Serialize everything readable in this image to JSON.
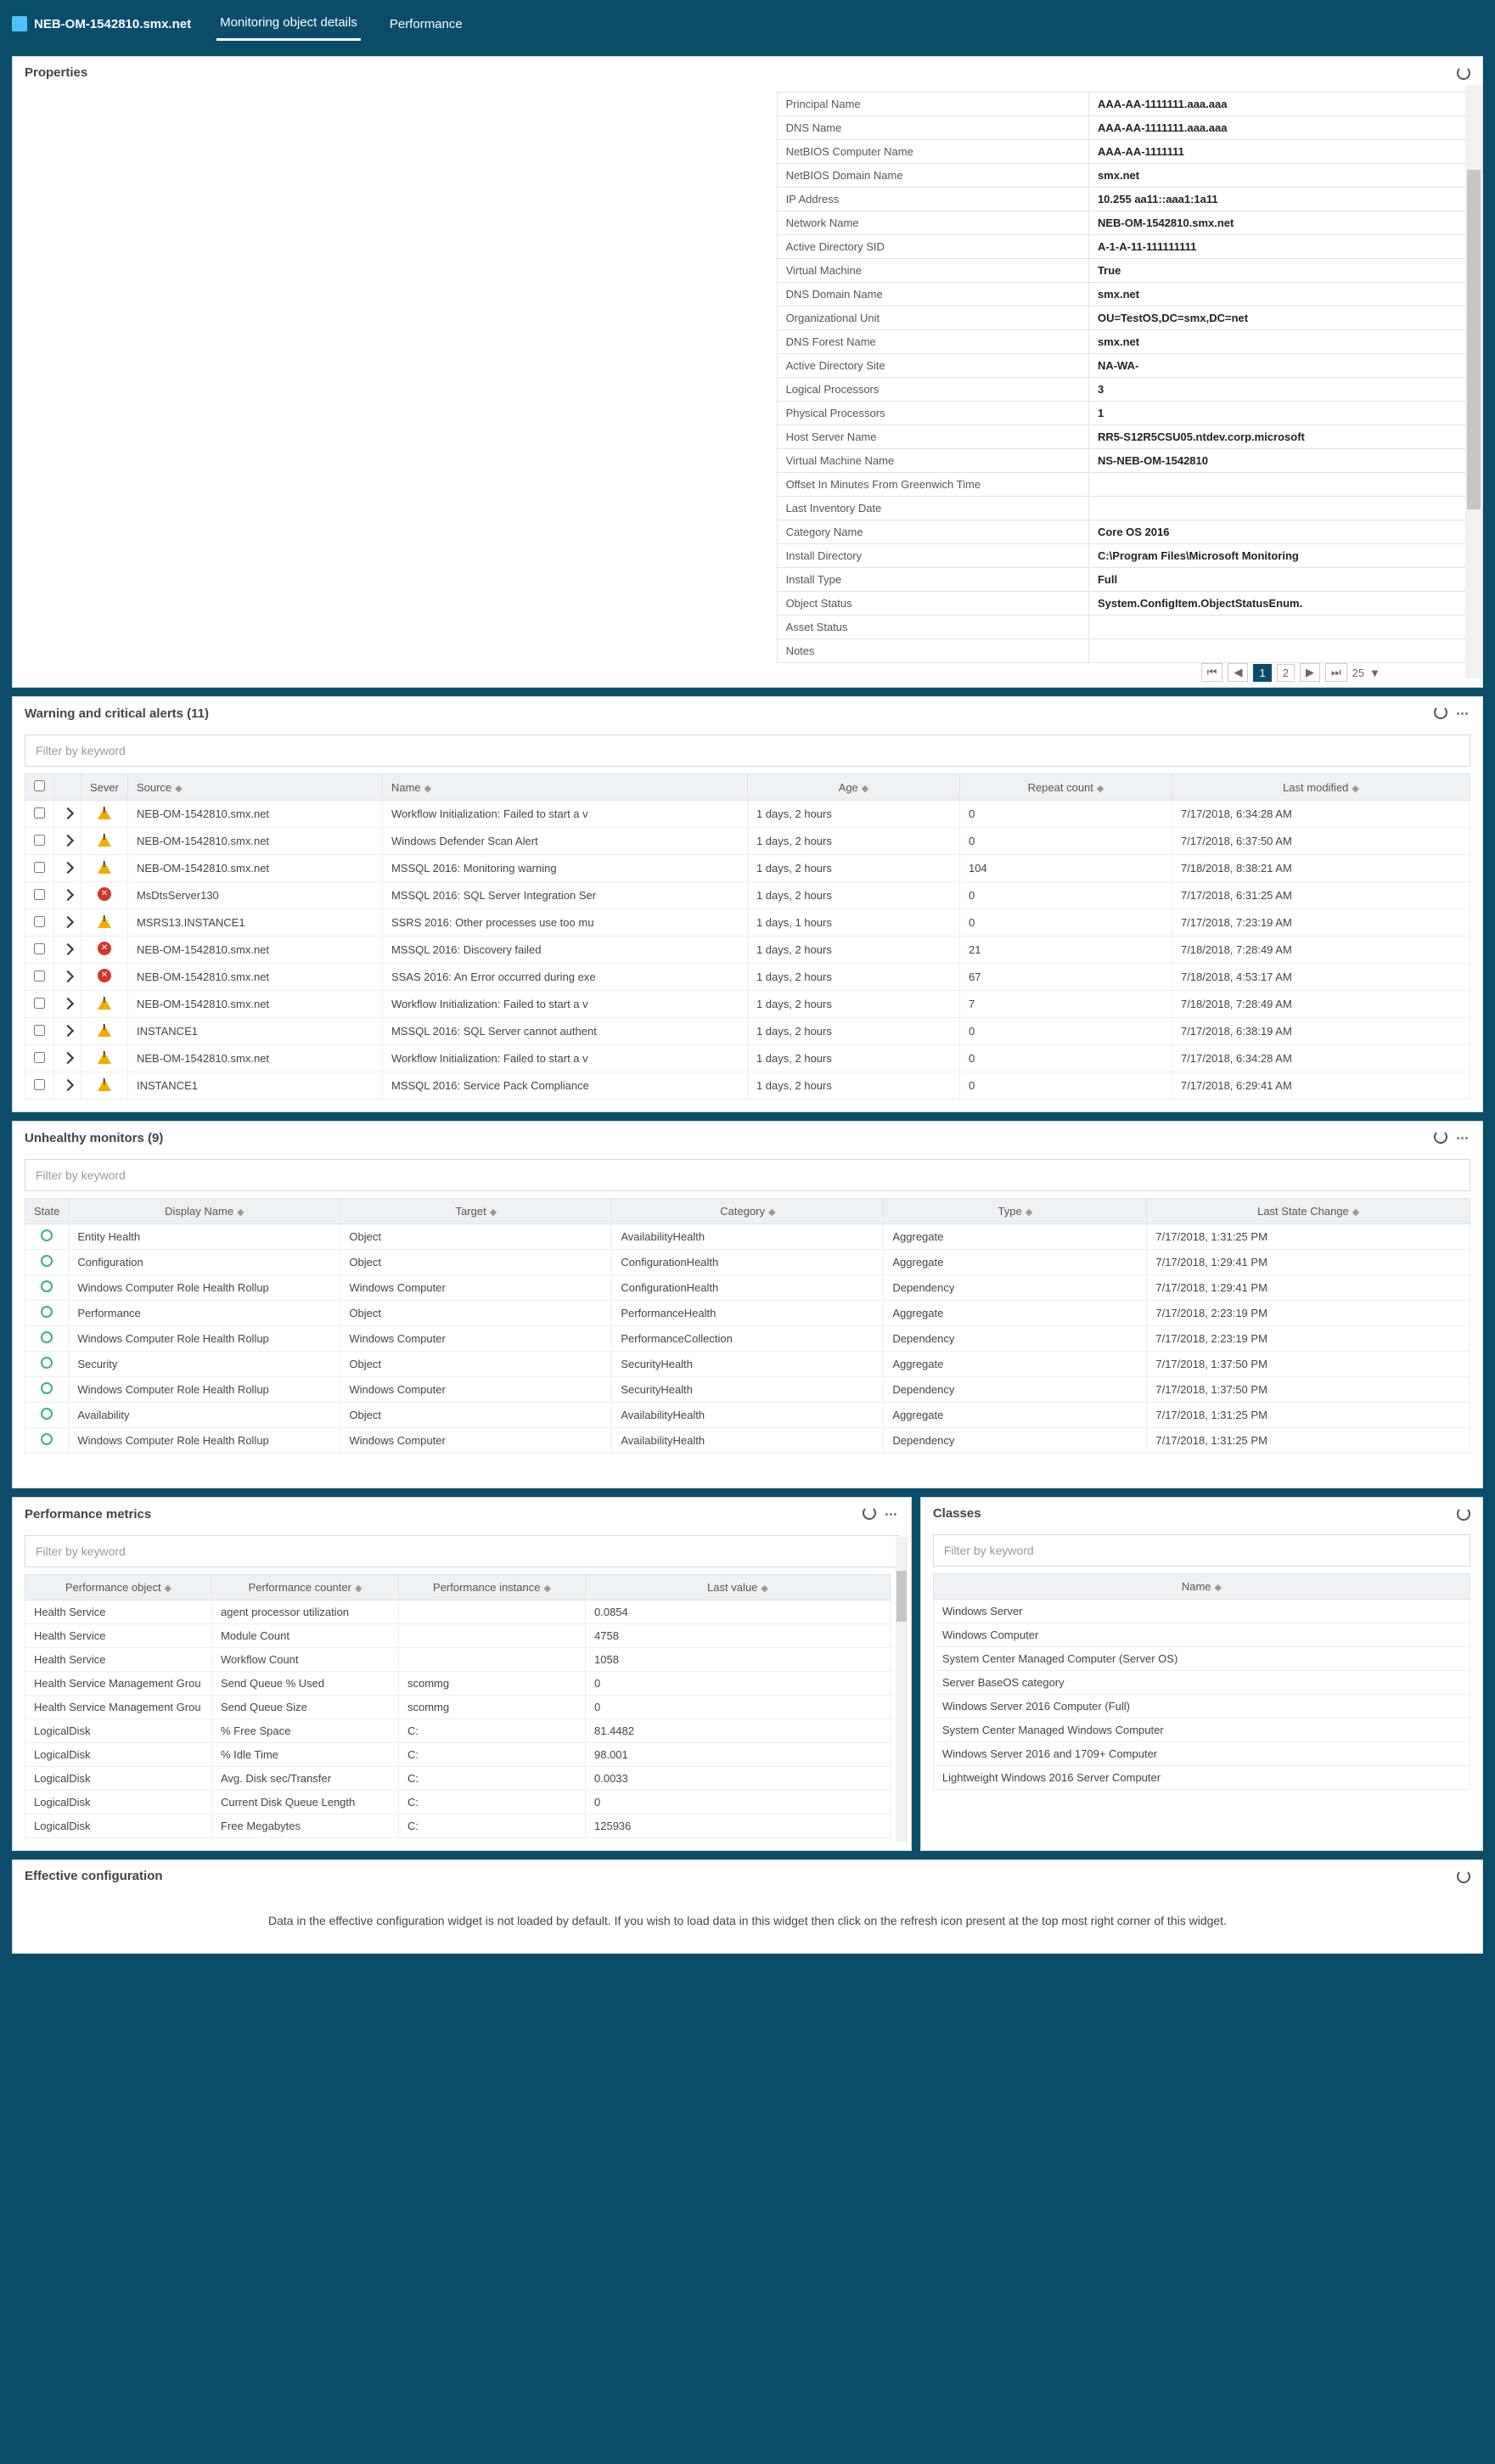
{
  "header": {
    "title": "NEB-OM-1542810.smx.net",
    "tabs": [
      {
        "label": "Monitoring object details",
        "active": true
      },
      {
        "label": "Performance",
        "active": false
      }
    ]
  },
  "properties": {
    "title": "Properties",
    "rows": [
      {
        "k": "Principal Name",
        "v": "AAA-AA-1111111.aaa.aaa"
      },
      {
        "k": "DNS Name",
        "v": "AAA-AA-1111111.aaa.aaa"
      },
      {
        "k": "NetBIOS Computer Name",
        "v": "AAA-AA-1111111"
      },
      {
        "k": "NetBIOS Domain Name",
        "v": "smx.net"
      },
      {
        "k": "IP Address",
        "v": "10.255    aa11::aaa1:1a11"
      },
      {
        "k": "Network Name",
        "v": "NEB-OM-1542810.smx.net"
      },
      {
        "k": "Active Directory SID",
        "v": "A-1-A-11-111111111"
      },
      {
        "k": "Virtual Machine",
        "v": "True"
      },
      {
        "k": "DNS Domain Name",
        "v": "smx.net"
      },
      {
        "k": "Organizational Unit",
        "v": "OU=TestOS,DC=smx,DC=net"
      },
      {
        "k": "DNS Forest Name",
        "v": "smx.net"
      },
      {
        "k": "Active Directory Site",
        "v": "NA-WA-"
      },
      {
        "k": "Logical Processors",
        "v": "3"
      },
      {
        "k": "Physical Processors",
        "v": "1"
      },
      {
        "k": "Host Server Name",
        "v": "RR5-S12R5CSU05.ntdev.corp.microsoft"
      },
      {
        "k": "Virtual Machine Name",
        "v": "NS-NEB-OM-1542810"
      },
      {
        "k": "Offset In Minutes From Greenwich Time",
        "v": ""
      },
      {
        "k": "Last Inventory Date",
        "v": ""
      },
      {
        "k": "Category Name",
        "v": "Core OS 2016"
      },
      {
        "k": "Install Directory",
        "v": "C:\\Program Files\\Microsoft Monitoring"
      },
      {
        "k": "Install Type",
        "v": "Full"
      },
      {
        "k": "Object Status",
        "v": "System.ConfigItem.ObjectStatusEnum."
      },
      {
        "k": "Asset Status",
        "v": ""
      },
      {
        "k": "Notes",
        "v": ""
      }
    ],
    "pager": {
      "pages": [
        "1",
        "2"
      ],
      "active": "1",
      "sizes": "25"
    }
  },
  "alerts": {
    "title": "Warning and critical alerts (11)",
    "filter_placeholder": "Filter by keyword",
    "headers": [
      "",
      "",
      "Sever",
      "Source",
      "Name",
      "Age",
      "Repeat count",
      "Last modified"
    ],
    "rows": [
      {
        "sev": "warn",
        "source": "NEB-OM-1542810.smx.net",
        "name": "Workflow Initialization: Failed to start a v",
        "age": "1 days, 2 hours",
        "repeat": "0",
        "mod": "7/17/2018, 6:34:28 AM"
      },
      {
        "sev": "warn",
        "source": "NEB-OM-1542810.smx.net",
        "name": "Windows Defender Scan Alert",
        "age": "1 days, 2 hours",
        "repeat": "0",
        "mod": "7/17/2018, 6:37:50 AM"
      },
      {
        "sev": "warn",
        "source": "NEB-OM-1542810.smx.net",
        "name": "MSSQL 2016: Monitoring warning",
        "age": "1 days, 2 hours",
        "repeat": "104",
        "mod": "7/18/2018, 8:38:21 AM"
      },
      {
        "sev": "crit",
        "source": "MsDtsServer130",
        "name": "MSSQL 2016: SQL Server Integration Ser",
        "age": "1 days, 2 hours",
        "repeat": "0",
        "mod": "7/17/2018, 6:31:25 AM"
      },
      {
        "sev": "warn",
        "source": "MSRS13.INSTANCE1",
        "name": "SSRS 2016: Other processes use too mu",
        "age": "1 days, 1 hours",
        "repeat": "0",
        "mod": "7/17/2018, 7:23:19 AM"
      },
      {
        "sev": "crit",
        "source": "NEB-OM-1542810.smx.net",
        "name": "MSSQL 2016: Discovery failed",
        "age": "1 days, 2 hours",
        "repeat": "21",
        "mod": "7/18/2018, 7:28:49 AM"
      },
      {
        "sev": "crit",
        "source": "NEB-OM-1542810.smx.net",
        "name": "SSAS 2016: An Error occurred during exe",
        "age": "1 days, 2 hours",
        "repeat": "67",
        "mod": "7/18/2018, 4:53:17 AM"
      },
      {
        "sev": "warn",
        "source": "NEB-OM-1542810.smx.net",
        "name": "Workflow Initialization: Failed to start a v",
        "age": "1 days, 2 hours",
        "repeat": "7",
        "mod": "7/18/2018, 7:28:49 AM"
      },
      {
        "sev": "warn",
        "source": "INSTANCE1",
        "name": "MSSQL 2016: SQL Server cannot authent",
        "age": "1 days, 2 hours",
        "repeat": "0",
        "mod": "7/17/2018, 6:38:19 AM"
      },
      {
        "sev": "warn",
        "source": "NEB-OM-1542810.smx.net",
        "name": "Workflow Initialization: Failed to start a v",
        "age": "1 days, 2 hours",
        "repeat": "0",
        "mod": "7/17/2018, 6:34:28 AM"
      },
      {
        "sev": "warn",
        "source": "INSTANCE1",
        "name": "MSSQL 2016: Service Pack Compliance",
        "age": "1 days, 2 hours",
        "repeat": "0",
        "mod": "7/17/2018, 6:29:41 AM"
      }
    ]
  },
  "monitors": {
    "title": "Unhealthy monitors (9)",
    "filter_placeholder": "Filter by keyword",
    "headers": [
      "State",
      "Display Name",
      "Target",
      "Category",
      "Type",
      "Last State Change"
    ],
    "rows": [
      {
        "name": "Entity Health",
        "target": "Object",
        "cat": "AvailabilityHealth",
        "type": "Aggregate",
        "chg": "7/17/2018, 1:31:25 PM"
      },
      {
        "name": "Configuration",
        "target": "Object",
        "cat": "ConfigurationHealth",
        "type": "Aggregate",
        "chg": "7/17/2018, 1:29:41 PM"
      },
      {
        "name": "Windows Computer Role Health Rollup",
        "target": "Windows Computer",
        "cat": "ConfigurationHealth",
        "type": "Dependency",
        "chg": "7/17/2018, 1:29:41 PM"
      },
      {
        "name": "Performance",
        "target": "Object",
        "cat": "PerformanceHealth",
        "type": "Aggregate",
        "chg": "7/17/2018, 2:23:19 PM"
      },
      {
        "name": "Windows Computer Role Health Rollup",
        "target": "Windows Computer",
        "cat": "PerformanceCollection",
        "type": "Dependency",
        "chg": "7/17/2018, 2:23:19 PM"
      },
      {
        "name": "Security",
        "target": "Object",
        "cat": "SecurityHealth",
        "type": "Aggregate",
        "chg": "7/17/2018, 1:37:50 PM"
      },
      {
        "name": "Windows Computer Role Health Rollup",
        "target": "Windows Computer",
        "cat": "SecurityHealth",
        "type": "Dependency",
        "chg": "7/17/2018, 1:37:50 PM"
      },
      {
        "name": "Availability",
        "target": "Object",
        "cat": "AvailabilityHealth",
        "type": "Aggregate",
        "chg": "7/17/2018, 1:31:25 PM"
      },
      {
        "name": "Windows Computer Role Health Rollup",
        "target": "Windows Computer",
        "cat": "AvailabilityHealth",
        "type": "Dependency",
        "chg": "7/17/2018, 1:31:25 PM"
      }
    ]
  },
  "perf": {
    "title": "Performance metrics",
    "filter_placeholder": "Filter by keyword",
    "headers": [
      "Performance object",
      "Performance counter",
      "Performance instance",
      "Last value"
    ],
    "rows": [
      {
        "obj": "Health Service",
        "ctr": "agent processor utilization",
        "inst": "",
        "val": "0.0854"
      },
      {
        "obj": "Health Service",
        "ctr": "Module Count",
        "inst": "",
        "val": "4758"
      },
      {
        "obj": "Health Service",
        "ctr": "Workflow Count",
        "inst": "",
        "val": "1058"
      },
      {
        "obj": "Health Service Management Grou",
        "ctr": "Send Queue % Used",
        "inst": "scommg",
        "val": "0"
      },
      {
        "obj": "Health Service Management Grou",
        "ctr": "Send Queue Size",
        "inst": "scommg",
        "val": "0"
      },
      {
        "obj": "LogicalDisk",
        "ctr": "% Free Space",
        "inst": "C:",
        "val": "81.4482"
      },
      {
        "obj": "LogicalDisk",
        "ctr": "% Idle Time",
        "inst": "C:",
        "val": "98.001"
      },
      {
        "obj": "LogicalDisk",
        "ctr": "Avg. Disk sec/Transfer",
        "inst": "C:",
        "val": "0.0033"
      },
      {
        "obj": "LogicalDisk",
        "ctr": "Current Disk Queue Length",
        "inst": "C:",
        "val": "0"
      },
      {
        "obj": "LogicalDisk",
        "ctr": "Free Megabytes",
        "inst": "C:",
        "val": "125936"
      }
    ]
  },
  "classes": {
    "title": "Classes",
    "filter_placeholder": "Filter by keyword",
    "headers": [
      "Name"
    ],
    "rows": [
      "Windows Server",
      "Windows Computer",
      "System Center Managed Computer (Server OS)",
      "Server BaseOS category",
      "Windows Server 2016 Computer (Full)",
      "System Center Managed Windows Computer",
      "Windows Server 2016 and 1709+ Computer",
      "Lightweight Windows 2016 Server Computer"
    ]
  },
  "effective": {
    "title": "Effective configuration",
    "message": "Data in the effective configuration widget is not loaded by default. If you wish to load data in this widget then click on the refresh icon present at the top most right corner of this widget."
  }
}
